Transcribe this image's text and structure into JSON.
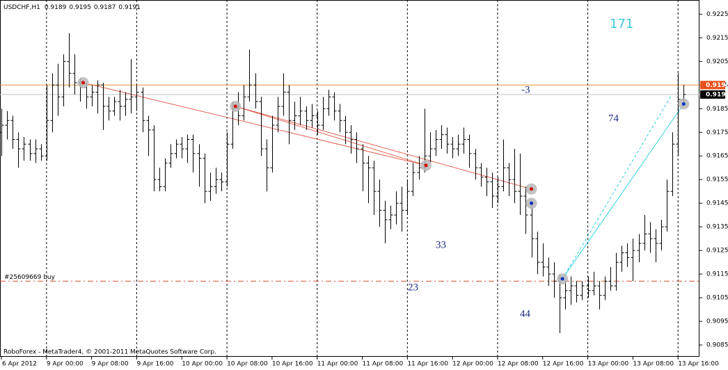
{
  "chart_data": {
    "type": "ohlc",
    "title": "USDCHF,H1",
    "color": "#000000",
    "open": [
      0.9175,
      0.9178,
      0.918,
      0.9172,
      0.9168,
      0.917,
      0.9166,
      0.9168,
      0.9165,
      0.918,
      0.9195,
      0.919,
      0.9205,
      0.92,
      0.9196,
      0.9194,
      0.919,
      0.9192,
      0.9195,
      0.9186,
      0.9184,
      0.9188,
      0.9186,
      0.9189,
      0.919,
      0.9192,
      0.918,
      0.9176,
      0.9155,
      0.9152,
      0.9162,
      0.9166,
      0.917,
      0.9168,
      0.9172,
      0.9166,
      0.9164,
      0.915,
      0.9152,
      0.9155,
      0.9154,
      0.917,
      0.9185,
      0.9182,
      0.919,
      0.9195,
      0.9188,
      0.9168,
      0.916,
      0.9178,
      0.9186,
      0.9192,
      0.918,
      0.9182,
      0.9184,
      0.918,
      0.9182,
      0.9178,
      0.9185,
      0.919,
      0.9184,
      0.918,
      0.9175,
      0.9172,
      0.9168,
      0.9162,
      0.916,
      0.915,
      0.9142,
      0.9138,
      0.914,
      0.9145,
      0.9142,
      0.915,
      0.9158,
      0.916,
      0.9165,
      0.9168,
      0.9172,
      0.9174,
      0.917,
      0.9168,
      0.917,
      0.9172,
      0.9166,
      0.916,
      0.9156,
      0.9154,
      0.9148,
      0.9152,
      0.916,
      0.9155,
      0.915,
      0.9148,
      0.914,
      0.913,
      0.912,
      0.9118,
      0.9115,
      0.9112,
      0.9105,
      0.9108,
      0.911,
      0.9106,
      0.911,
      0.9108,
      0.911,
      0.9106,
      0.9112,
      0.911,
      0.912,
      0.9124,
      0.9122,
      0.9125,
      0.9128,
      0.9132,
      0.913,
      0.9128,
      0.9135,
      0.915,
      0.917,
      0.9189
    ],
    "high": [
      0.9185,
      0.9184,
      0.9182,
      0.9175,
      0.9173,
      0.9172,
      0.9172,
      0.917,
      0.9195,
      0.92,
      0.9204,
      0.9208,
      0.9217,
      0.9208,
      0.9198,
      0.9196,
      0.9195,
      0.9197,
      0.9196,
      0.919,
      0.919,
      0.9193,
      0.9192,
      0.9206,
      0.9195,
      0.9194,
      0.9182,
      0.9178,
      0.916,
      0.9164,
      0.917,
      0.9172,
      0.9173,
      0.9174,
      0.9174,
      0.917,
      0.9166,
      0.9158,
      0.916,
      0.9158,
      0.9175,
      0.9188,
      0.9192,
      0.9195,
      0.921,
      0.92,
      0.919,
      0.9172,
      0.9182,
      0.919,
      0.92,
      0.9195,
      0.9188,
      0.919,
      0.9186,
      0.9187,
      0.9184,
      0.919,
      0.9193,
      0.9192,
      0.9187,
      0.9182,
      0.9178,
      0.9175,
      0.917,
      0.9165,
      0.9163,
      0.9155,
      0.9146,
      0.9144,
      0.915,
      0.9152,
      0.9155,
      0.9162,
      0.9165,
      0.9185,
      0.9175,
      0.9176,
      0.9178,
      0.9177,
      0.9173,
      0.9174,
      0.9177,
      0.9174,
      0.9168,
      0.9162,
      0.916,
      0.9158,
      0.9156,
      0.9172,
      0.9162,
      0.9168,
      0.9166,
      0.9152,
      0.9145,
      0.9133,
      0.9128,
      0.9122,
      0.912,
      0.9115,
      0.9112,
      0.9114,
      0.9112,
      0.9112,
      0.9114,
      0.9116,
      0.9112,
      0.9114,
      0.9118,
      0.9124,
      0.9127,
      0.9128,
      0.913,
      0.9132,
      0.914,
      0.9137,
      0.9134,
      0.9138,
      0.9155,
      0.9175,
      0.92,
      0.9195
    ],
    "low": [
      0.9165,
      0.9172,
      0.9168,
      0.916,
      0.9163,
      0.9163,
      0.9162,
      0.9163,
      0.9163,
      0.9175,
      0.9182,
      0.9186,
      0.9194,
      0.9191,
      0.9188,
      0.9185,
      0.9186,
      0.9183,
      0.9176,
      0.918,
      0.9182,
      0.918,
      0.9182,
      0.9183,
      0.9184,
      0.9175,
      0.9165,
      0.915,
      0.915,
      0.915,
      0.916,
      0.9164,
      0.9164,
      0.9162,
      0.9158,
      0.9152,
      0.9145,
      0.9146,
      0.9149,
      0.915,
      0.9152,
      0.9168,
      0.9178,
      0.918,
      0.9188,
      0.9185,
      0.9165,
      0.915,
      0.9158,
      0.9175,
      0.9182,
      0.917,
      0.9176,
      0.9178,
      0.9176,
      0.9177,
      0.9174,
      0.9176,
      0.9182,
      0.918,
      0.9175,
      0.917,
      0.9166,
      0.9162,
      0.915,
      0.9145,
      0.914,
      0.9135,
      0.9128,
      0.9134,
      0.9136,
      0.9133,
      0.914,
      0.9148,
      0.9155,
      0.9158,
      0.9162,
      0.9165,
      0.9168,
      0.9166,
      0.9164,
      0.9165,
      0.9166,
      0.916,
      0.9155,
      0.9152,
      0.9148,
      0.9143,
      0.9145,
      0.915,
      0.9148,
      0.9145,
      0.914,
      0.9132,
      0.9122,
      0.9115,
      0.9114,
      0.911,
      0.9105,
      0.909,
      0.91,
      0.9102,
      0.9103,
      0.9104,
      0.9105,
      0.9106,
      0.91,
      0.9104,
      0.9108,
      0.9108,
      0.9116,
      0.9118,
      0.9112,
      0.912,
      0.9125,
      0.9124,
      0.912,
      0.9125,
      0.9133,
      0.9148,
      0.9165,
      0.9187
    ],
    "close": [
      0.9178,
      0.918,
      0.9172,
      0.9168,
      0.917,
      0.9166,
      0.9168,
      0.9165,
      0.918,
      0.9195,
      0.919,
      0.9205,
      0.92,
      0.9196,
      0.9194,
      0.919,
      0.9192,
      0.9195,
      0.9186,
      0.9184,
      0.9188,
      0.9186,
      0.9189,
      0.919,
      0.9192,
      0.918,
      0.9176,
      0.9155,
      0.9152,
      0.9162,
      0.9166,
      0.917,
      0.9168,
      0.9172,
      0.9166,
      0.9164,
      0.915,
      0.9152,
      0.9155,
      0.9154,
      0.917,
      0.9185,
      0.9182,
      0.919,
      0.9195,
      0.9188,
      0.9168,
      0.916,
      0.9178,
      0.9186,
      0.9192,
      0.918,
      0.9182,
      0.9184,
      0.918,
      0.9182,
      0.9178,
      0.9185,
      0.919,
      0.9184,
      0.918,
      0.9175,
      0.9172,
      0.9168,
      0.9162,
      0.916,
      0.915,
      0.9142,
      0.9138,
      0.914,
      0.9145,
      0.9142,
      0.915,
      0.9158,
      0.916,
      0.9165,
      0.9168,
      0.9172,
      0.9174,
      0.917,
      0.9168,
      0.917,
      0.9172,
      0.9166,
      0.916,
      0.9156,
      0.9154,
      0.9148,
      0.9152,
      0.916,
      0.9155,
      0.915,
      0.9148,
      0.914,
      0.913,
      0.912,
      0.9118,
      0.9115,
      0.9112,
      0.9105,
      0.9108,
      0.911,
      0.9106,
      0.911,
      0.9108,
      0.911,
      0.9106,
      0.9112,
      0.911,
      0.912,
      0.9124,
      0.9122,
      0.9125,
      0.9128,
      0.9132,
      0.913,
      0.9128,
      0.9135,
      0.915,
      0.917,
      0.9189,
      0.9191
    ],
    "xlim": [
      -0.25,
      123.8
    ],
    "ylim": [
      0.908,
      0.9231
    ],
    "yticks": [
      0.9225,
      0.9215,
      0.9205,
      0.9195,
      0.9185,
      0.9175,
      0.9165,
      0.9155,
      0.9145,
      0.9135,
      0.9125,
      0.9115,
      0.9105,
      0.9095,
      0.9085
    ],
    "xticks": [
      {
        "value": 0,
        "label": "6 Apr 2012"
      },
      {
        "value": 8,
        "label": "9 Apr 00:00"
      },
      {
        "value": 16,
        "label": "9 Apr 08:00"
      },
      {
        "value": 24,
        "label": "9 Apr 16:00"
      },
      {
        "value": 32,
        "label": "10 Apr 00:00"
      },
      {
        "value": 40,
        "label": "10 Apr 08:00"
      },
      {
        "value": 48,
        "label": "10 Apr 16:00"
      },
      {
        "value": 56,
        "label": "11 Apr 00:00"
      },
      {
        "value": 64,
        "label": "11 Apr 08:00"
      },
      {
        "value": 72,
        "label": "11 Apr 16:00"
      },
      {
        "value": 80,
        "label": "12 Apr 00:00"
      },
      {
        "value": 88,
        "label": "12 Apr 08:00"
      },
      {
        "value": 96,
        "label": "12 Apr 16:00"
      },
      {
        "value": 104,
        "label": "13 Apr 00:00"
      },
      {
        "value": 112,
        "label": "13 Apr 08:00"
      },
      {
        "value": 120,
        "label": "13 Apr 16:00"
      }
    ],
    "grid": true,
    "hlines": [
      {
        "value": 0.9195,
        "color": "#e89030",
        "style": "solid",
        "tag_color": "#e8501c"
      },
      {
        "value": 0.9191,
        "color": "#c0c0c0",
        "style": "solid",
        "tag_color": "#000000"
      },
      {
        "value": 0.9112,
        "color": "#d05030",
        "style": "dashed",
        "name": "#25609669 buy"
      }
    ],
    "trendlines": [
      {
        "x": [
          14.5,
          75.3
        ],
        "y": [
          0.9196,
          0.9161
        ],
        "color": "#e06050",
        "style": "solid"
      },
      {
        "x": [
          41.5,
          75.3
        ],
        "y": [
          0.9186,
          0.9161
        ],
        "color": "#e06050",
        "style": "solid"
      },
      {
        "x": [
          41.5,
          94
        ],
        "y": [
          0.9186,
          0.9151
        ],
        "color": "#e06050",
        "style": "solid"
      },
      {
        "x": [
          99.5,
          121
        ],
        "y": [
          0.9113,
          0.9187
        ],
        "color": "#30d0e0",
        "style": "solid"
      },
      {
        "x": [
          99.5,
          118.9
        ],
        "y": [
          0.9113,
          0.9191
        ],
        "color": "#30d0e0",
        "style": "dashed"
      }
    ],
    "markers": [
      {
        "x": 14.5,
        "y": 0.9196,
        "color": "#d00000"
      },
      {
        "x": 41.5,
        "y": 0.9186,
        "color": "#d00000"
      },
      {
        "x": 75.3,
        "y": 0.9161,
        "color": "#d00000"
      },
      {
        "x": 94,
        "y": 0.9151,
        "color": "#d00000"
      },
      {
        "x": 94,
        "y": 0.9145,
        "color": "#1030c0"
      },
      {
        "x": 99.5,
        "y": 0.9113,
        "color": "#1030c0"
      },
      {
        "x": 121,
        "y": 0.9187,
        "color": "#1030c0"
      }
    ],
    "annotations": [
      {
        "text": "171",
        "color": "#40c8e0"
      },
      {
        "text": "-3",
        "color": "#1a2a80"
      },
      {
        "text": "74",
        "color": "#1a2a80"
      },
      {
        "text": "33",
        "color": "#1a2a80"
      },
      {
        "text": "23",
        "color": "#1a2a80"
      },
      {
        "text": "44",
        "color": "#1a2a80"
      }
    ],
    "footer": "RoboForex - MetaTrader4, © 2001-2011 MetaQuotes Software Corp."
  }
}
